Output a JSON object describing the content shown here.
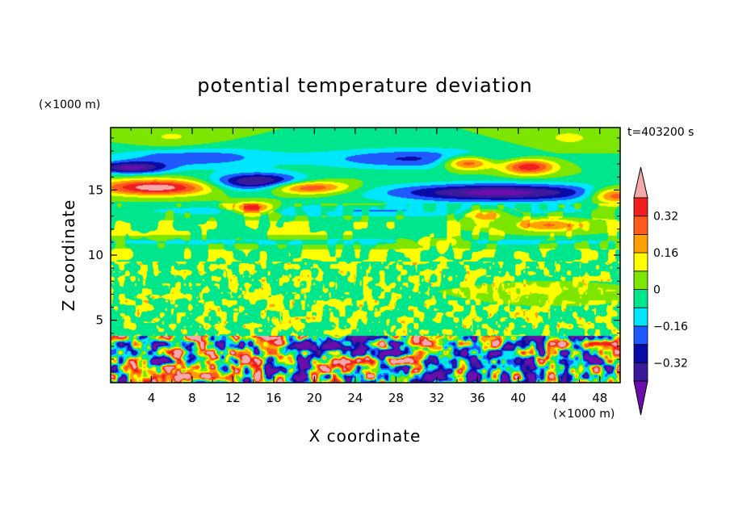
{
  "chart_data": {
    "type": "heatmap",
    "title": "potential temperature deviation",
    "xlabel": "X coordinate",
    "ylabel": "Z coordinate",
    "x_unit": "(×1000 m)",
    "y_unit": "(×1000 m)",
    "time_label": "t=403200 s",
    "xlim": [
      0,
      50
    ],
    "ylim": [
      0.2,
      19.8
    ],
    "x_ticks": [
      4,
      8,
      12,
      16,
      20,
      24,
      28,
      32,
      36,
      40,
      44,
      48
    ],
    "y_ticks": [
      5,
      10,
      15
    ],
    "colorbar": {
      "levels": [
        -0.4,
        -0.32,
        -0.24,
        -0.16,
        -0.08,
        0,
        0.08,
        0.16,
        0.24,
        0.32,
        0.4
      ],
      "tick_labels": [
        "0.32",
        "0.16",
        "0",
        "−0.16",
        "−0.32"
      ],
      "tick_values": [
        0.32,
        0.16,
        0,
        -0.16,
        -0.32
      ],
      "colors": [
        "#6a0dad",
        "#3a1a9a",
        "#0a0aa8",
        "#1e5aff",
        "#00e6ff",
        "#00e68c",
        "#7ce600",
        "#ffff00",
        "#ffa000",
        "#ff5a1e",
        "#f01e1e",
        "#f7a8a8"
      ]
    },
    "features": [
      {
        "value": -0.1,
        "x": [
          0,
          50
        ],
        "z": [
          10.5,
          11.5
        ]
      },
      {
        "value": 0.38,
        "x": [
          1,
          8
        ],
        "z": [
          14.6,
          15.8
        ]
      },
      {
        "value": 0.38,
        "x": [
          16,
          22
        ],
        "z": [
          14.8,
          15.6
        ]
      },
      {
        "value": 0.38,
        "x": [
          13,
          15
        ],
        "z": [
          13.2,
          13.9
        ]
      },
      {
        "value": 0.38,
        "x": [
          34,
          36
        ],
        "z": [
          16.7,
          17.6
        ]
      },
      {
        "value": 0.38,
        "x": [
          39,
          43
        ],
        "z": [
          16.3,
          17.3
        ]
      },
      {
        "value": 0.38,
        "x": [
          48,
          50
        ],
        "z": [
          14.0,
          15.2
        ]
      },
      {
        "value": -0.38,
        "x": [
          10,
          19
        ],
        "z": [
          14.8,
          16.4
        ]
      },
      {
        "value": -0.38,
        "x": [
          26,
          50
        ],
        "z": [
          14.0,
          15.6
        ]
      },
      {
        "value": -0.38,
        "x": [
          0,
          4
        ],
        "z": [
          16.3,
          17.0
        ]
      },
      {
        "value": -0.38,
        "x": [
          34,
          38
        ],
        "z": [
          1.0,
          3.4
        ]
      }
    ]
  }
}
